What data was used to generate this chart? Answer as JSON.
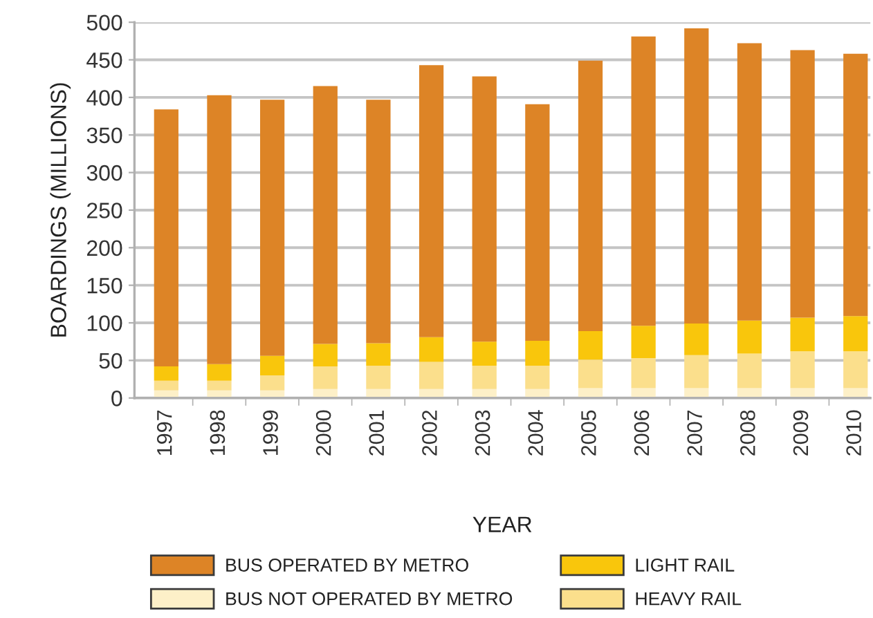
{
  "chart_data": {
    "type": "bar",
    "stacked": true,
    "xlabel": "YEAR",
    "ylabel": "BOARDINGS (MILLIONS)",
    "categories": [
      "1997",
      "1998",
      "1999",
      "2000",
      "2001",
      "2002",
      "2003",
      "2004",
      "2005",
      "2006",
      "2007",
      "2008",
      "2009",
      "2010"
    ],
    "series": [
      {
        "name": "BUS NOT OPERATED BY METRO",
        "color": "#fdf0c8",
        "values": [
          10,
          10,
          10,
          12,
          12,
          12,
          12,
          12,
          13,
          13,
          13,
          13,
          13,
          13
        ]
      },
      {
        "name": "HEAVY RAIL",
        "color": "#fbdf8c",
        "values": [
          13,
          13,
          20,
          30,
          31,
          36,
          31,
          31,
          38,
          40,
          44,
          46,
          49,
          49
        ]
      },
      {
        "name": "LIGHT RAIL",
        "color": "#f9c60c",
        "values": [
          19,
          22,
          26,
          30,
          30,
          33,
          32,
          33,
          38,
          43,
          42,
          44,
          45,
          47
        ]
      },
      {
        "name": "BUS OPERATED BY METRO",
        "color": "#dd8426",
        "values": [
          342,
          358,
          341,
          343,
          324,
          362,
          353,
          315,
          360,
          385,
          393,
          369,
          356,
          349
        ]
      }
    ],
    "ylim": [
      0,
      500
    ],
    "yticks": [
      0,
      50,
      100,
      150,
      200,
      250,
      300,
      350,
      400,
      450,
      500
    ],
    "grid": "y",
    "legend": "bottom"
  }
}
